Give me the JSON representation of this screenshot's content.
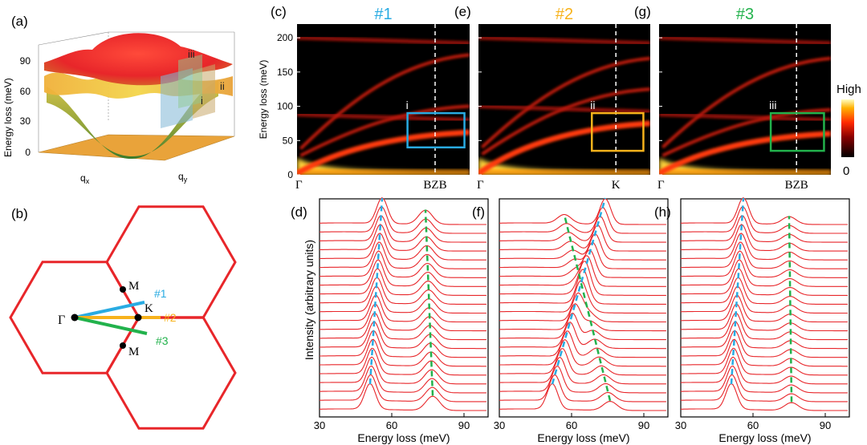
{
  "panel_labels": {
    "a": "(a)",
    "b": "(b)",
    "c": "(c)",
    "d": "(d)",
    "e": "(e)",
    "f": "(f)",
    "g": "(g)",
    "h": "(h)"
  },
  "colors": {
    "path1": "#29abe2",
    "path2": "#f7b21b",
    "path3": "#22b24c",
    "hex": "#e8262a",
    "spectra": "#e8262a"
  },
  "panel_a": {
    "ylabel": "Energy loss (meV)",
    "yticks": [
      "0",
      "30",
      "60",
      "90"
    ],
    "xlabel": "q",
    "xsub": "x",
    "ylabel2": "q",
    "ysub": "y",
    "marks": [
      "i",
      "ii",
      "iii"
    ]
  },
  "panel_b": {
    "labels": {
      "gamma": "Γ",
      "k": "K",
      "m_top": "M",
      "m_bottom": "M"
    },
    "paths": [
      "#1",
      "#2",
      "#3"
    ]
  },
  "colorbar": {
    "high": "High",
    "low": "0"
  },
  "chart_data": [
    {
      "type": "heatmap",
      "title": "#1",
      "ylabel": "Energy loss (meV)",
      "ylim": [
        0,
        220
      ],
      "yticks": [
        "0",
        "50",
        "100",
        "150",
        "200"
      ],
      "x_start": "Γ",
      "x_end": "BZB",
      "box_label": "i",
      "box_energy": [
        40,
        90
      ],
      "box_fraction": [
        0.64,
        0.97
      ],
      "zb_fraction": 0.8,
      "branches": [
        {
          "shape": "acoustic",
          "top": 62
        },
        {
          "shape": "optical",
          "from": 28,
          "to": 100
        },
        {
          "shape": "flat",
          "level": 200
        },
        {
          "shape": "optical",
          "from": 38,
          "to": 175
        },
        {
          "shape": "flat",
          "level": 88
        }
      ]
    },
    {
      "type": "heatmap",
      "title": "#2",
      "ylabel": "",
      "ylim": [
        0,
        220
      ],
      "yticks": [
        "0",
        "50",
        "100",
        "150",
        "200"
      ],
      "x_start": "Γ",
      "x_end": "K",
      "box_label": "ii",
      "box_energy": [
        35,
        90
      ],
      "box_fraction": [
        0.66,
        0.96
      ],
      "zb_fraction": 0.8,
      "branches": [
        {
          "shape": "acoustic",
          "top": 75
        },
        {
          "shape": "optical",
          "from": 30,
          "to": 125
        },
        {
          "shape": "flat",
          "level": 200
        },
        {
          "shape": "optical",
          "from": 40,
          "to": 170
        },
        {
          "shape": "flat",
          "level": 100
        }
      ]
    },
    {
      "type": "heatmap",
      "title": "#3",
      "ylabel": "",
      "ylim": [
        0,
        220
      ],
      "yticks": [
        "0",
        "50",
        "100",
        "150",
        "200"
      ],
      "x_start": "Γ",
      "x_end": "BZB",
      "box_label": "iii",
      "box_energy": [
        35,
        90
      ],
      "box_fraction": [
        0.65,
        0.96
      ],
      "zb_fraction": 0.8,
      "branches": [
        {
          "shape": "acoustic",
          "top": 60
        },
        {
          "shape": "optical",
          "from": 28,
          "to": 95
        },
        {
          "shape": "flat",
          "level": 200
        },
        {
          "shape": "optical",
          "from": 40,
          "to": 170
        },
        {
          "shape": "flat",
          "level": 88
        }
      ]
    },
    {
      "type": "line",
      "title": "",
      "xlabel": "Energy loss (meV)",
      "ylabel": "Intensity (arbitrary units)",
      "xlim": [
        30,
        100
      ],
      "xticks": [
        30,
        60,
        90
      ],
      "n_spectra": 22,
      "peak1": {
        "from": 51,
        "to": 56
      },
      "peak2": {
        "from": 77,
        "to": 74
      },
      "amp2": 0.55
    },
    {
      "type": "line",
      "title": "",
      "xlabel": "Energy loss (meV)",
      "ylabel": "",
      "xlim": [
        30,
        100
      ],
      "xticks": [
        30,
        60,
        90
      ],
      "n_spectra": 22,
      "peak1": {
        "from": 52,
        "to": 74
      },
      "peak2": {
        "from": 76,
        "to": 57
      },
      "amp2": 0.35
    },
    {
      "type": "line",
      "title": "",
      "xlabel": "Energy loss (meV)",
      "ylabel": "",
      "xlim": [
        30,
        100
      ],
      "xticks": [
        30,
        60,
        90
      ],
      "n_spectra": 22,
      "peak1": {
        "from": 51,
        "to": 56
      },
      "peak2": {
        "from": 76,
        "to": 75
      },
      "amp2": 0.3
    }
  ]
}
